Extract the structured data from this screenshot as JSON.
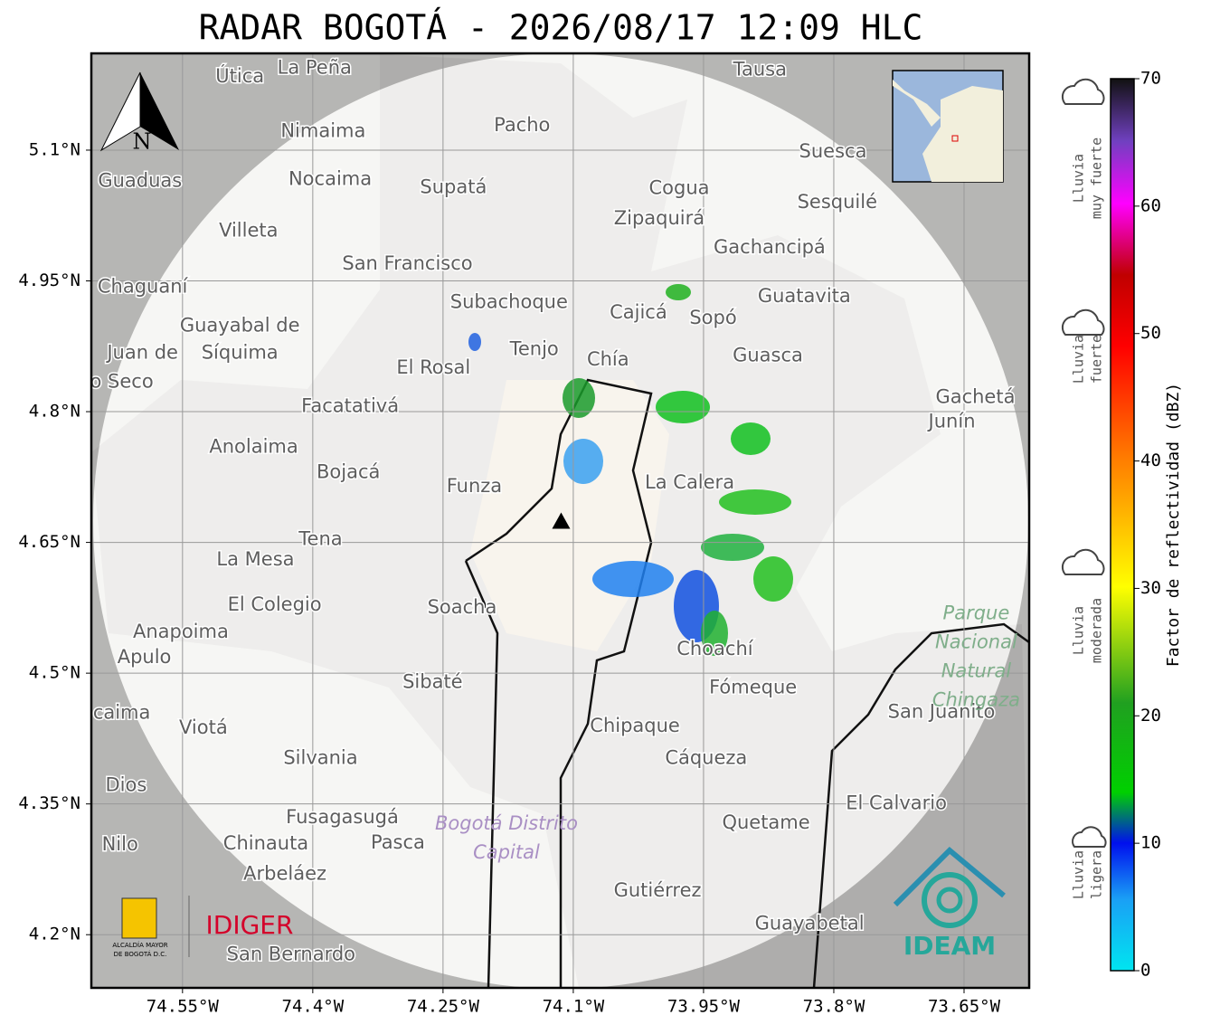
{
  "title": "RADAR BOGOTÁ - 2026/08/17 12:09 HLC",
  "north_label": "N",
  "map": {
    "xlim": [
      -74.655,
      -73.575
    ],
    "ylim": [
      4.139,
      5.211
    ],
    "xticks": [
      {
        "value": -74.55,
        "label": "74.55°W"
      },
      {
        "value": -74.4,
        "label": "74.4°W"
      },
      {
        "value": -74.25,
        "label": "74.25°W"
      },
      {
        "value": -74.1,
        "label": "74.1°W"
      },
      {
        "value": -73.95,
        "label": "73.95°W"
      },
      {
        "value": -73.8,
        "label": "73.8°W"
      },
      {
        "value": -73.65,
        "label": "73.65°W"
      }
    ],
    "yticks": [
      {
        "value": 5.1,
        "label": "5.1°N"
      },
      {
        "value": 4.95,
        "label": "4.95°N"
      },
      {
        "value": 4.8,
        "label": "4.8°N"
      },
      {
        "value": 4.65,
        "label": "4.65°N"
      },
      {
        "value": 4.5,
        "label": "4.5°N"
      },
      {
        "value": 4.35,
        "label": "4.35°N"
      },
      {
        "value": 4.2,
        "label": "4.2°N"
      }
    ],
    "radar_site": {
      "lon": -74.114,
      "lat": 4.674
    },
    "places": [
      {
        "name": "La Peña",
        "lon": -74.398,
        "lat": 5.194
      },
      {
        "name": "Útica",
        "lon": -74.484,
        "lat": 5.184
      },
      {
        "name": "Tausa",
        "lon": -73.885,
        "lat": 5.192
      },
      {
        "name": "Pacho",
        "lon": -74.159,
        "lat": 5.128
      },
      {
        "name": "Nimaima",
        "lon": -74.388,
        "lat": 5.121
      },
      {
        "name": "Guaduas",
        "lon": -74.599,
        "lat": 5.064
      },
      {
        "name": "Nocaima",
        "lon": -74.38,
        "lat": 5.066
      },
      {
        "name": "Supatá",
        "lon": -74.238,
        "lat": 5.057
      },
      {
        "name": "Suesca",
        "lon": -73.801,
        "lat": 5.098
      },
      {
        "name": "Cogua",
        "lon": -73.978,
        "lat": 5.056
      },
      {
        "name": "Sesquilé",
        "lon": -73.796,
        "lat": 5.04
      },
      {
        "name": "Zipaquirá",
        "lon": -74.001,
        "lat": 5.021
      },
      {
        "name": "Villeta",
        "lon": -74.474,
        "lat": 5.007
      },
      {
        "name": "Gachancipá",
        "lon": -73.874,
        "lat": 4.988
      },
      {
        "name": "San Francisco",
        "lon": -74.291,
        "lat": 4.969
      },
      {
        "name": "Chaguaní",
        "lon": -74.596,
        "lat": 4.943
      },
      {
        "name": "Guatavita",
        "lon": -73.834,
        "lat": 4.932
      },
      {
        "name": "Subachoque",
        "lon": -74.174,
        "lat": 4.925
      },
      {
        "name": "Cajicá",
        "lon": -74.025,
        "lat": 4.913
      },
      {
        "name": "Sopó",
        "lon": -73.939,
        "lat": 4.907
      },
      {
        "name": "Guayabal de",
        "lon": -74.484,
        "lat": 4.898
      },
      {
        "name": "Síquima",
        "lon": -74.484,
        "lat": 4.867
      },
      {
        "name": "Tenjo",
        "lon": -74.145,
        "lat": 4.871
      },
      {
        "name": "Chía",
        "lon": -74.06,
        "lat": 4.859
      },
      {
        "name": "Guasca",
        "lon": -73.876,
        "lat": 4.864
      },
      {
        "name": "Juan de",
        "lon": -74.596,
        "lat": 4.867
      },
      {
        "name": "o Seco",
        "lon": -74.62,
        "lat": 4.834
      },
      {
        "name": "El Rosal",
        "lon": -74.261,
        "lat": 4.85
      },
      {
        "name": "Facatativá",
        "lon": -74.357,
        "lat": 4.806
      },
      {
        "name": "Gachetá",
        "lon": -73.637,
        "lat": 4.816
      },
      {
        "name": "Junín",
        "lon": -73.664,
        "lat": 4.788
      },
      {
        "name": "Anolaima",
        "lon": -74.468,
        "lat": 4.759
      },
      {
        "name": "Bojacá",
        "lon": -74.359,
        "lat": 4.73
      },
      {
        "name": "Funza",
        "lon": -74.214,
        "lat": 4.714
      },
      {
        "name": "La Calera",
        "lon": -73.966,
        "lat": 4.718
      },
      {
        "name": "Tena",
        "lon": -74.391,
        "lat": 4.653
      },
      {
        "name": "La Mesa",
        "lon": -74.466,
        "lat": 4.63
      },
      {
        "name": "Soacha",
        "lon": -74.228,
        "lat": 4.575
      },
      {
        "name": "El Colegio",
        "lon": -74.444,
        "lat": 4.578
      },
      {
        "name": "Anapoima",
        "lon": -74.552,
        "lat": 4.547
      },
      {
        "name": "Apulo",
        "lon": -74.594,
        "lat": 4.518
      },
      {
        "name": "Choachí",
        "lon": -73.937,
        "lat": 4.527
      },
      {
        "name": "Sibaté",
        "lon": -74.262,
        "lat": 4.489
      },
      {
        "name": "Fómeque",
        "lon": -73.893,
        "lat": 4.483
      },
      {
        "name": "San Juanito",
        "lon": -73.676,
        "lat": 4.455
      },
      {
        "name": "caima",
        "lon": -74.62,
        "lat": 4.454
      },
      {
        "name": "Viotá",
        "lon": -74.526,
        "lat": 4.437
      },
      {
        "name": "Chipaque",
        "lon": -74.029,
        "lat": 4.439
      },
      {
        "name": "Silvania",
        "lon": -74.391,
        "lat": 4.402
      },
      {
        "name": "Cáqueza",
        "lon": -73.947,
        "lat": 4.402
      },
      {
        "name": "Dios",
        "lon": -74.615,
        "lat": 4.371
      },
      {
        "name": "El Calvario",
        "lon": -73.728,
        "lat": 4.35
      },
      {
        "name": "Fusagasugá",
        "lon": -74.366,
        "lat": 4.334
      },
      {
        "name": "Quetame",
        "lon": -73.878,
        "lat": 4.328
      },
      {
        "name": "Nilo",
        "lon": -74.622,
        "lat": 4.303
      },
      {
        "name": "Chinauta",
        "lon": -74.454,
        "lat": 4.304
      },
      {
        "name": "Pasca",
        "lon": -74.302,
        "lat": 4.305
      },
      {
        "name": "Arbeláez",
        "lon": -74.432,
        "lat": 4.269
      },
      {
        "name": "Gutiérrez",
        "lon": -74.003,
        "lat": 4.25
      },
      {
        "name": "Guayabetal",
        "lon": -73.828,
        "lat": 4.212
      },
      {
        "name": "San Bernardo",
        "lon": -74.425,
        "lat": 4.177
      }
    ],
    "park_label": {
      "lines": [
        "Parque",
        "Nacional",
        "Natural",
        "Chingaza"
      ],
      "lon": -73.636,
      "lat": 4.568
    },
    "district_label": {
      "lines": [
        "Bogotá Distrito",
        "Capital"
      ],
      "lon": -74.177,
      "lat": 4.327
    }
  },
  "colorbar": {
    "label": "Factor de reflectividad (dBZ)",
    "lim": [
      0,
      70
    ],
    "ticks": [
      0,
      10,
      20,
      30,
      40,
      50,
      60,
      70
    ]
  },
  "rain_categories": [
    {
      "lines": [
        "Lluvia",
        "muy fuerte"
      ]
    },
    {
      "lines": [
        "Lluvia",
        "fuerte"
      ]
    },
    {
      "lines": [
        "Lluvia",
        "moderada"
      ]
    },
    {
      "lines": [
        "Lluvia",
        "ligera"
      ]
    }
  ],
  "logos": {
    "alcaldia": [
      "ALCALDÍA MAYOR",
      "DE BOGOTÁ D.C."
    ],
    "idiger": "IDIGER",
    "ideam": "IDEAM"
  }
}
